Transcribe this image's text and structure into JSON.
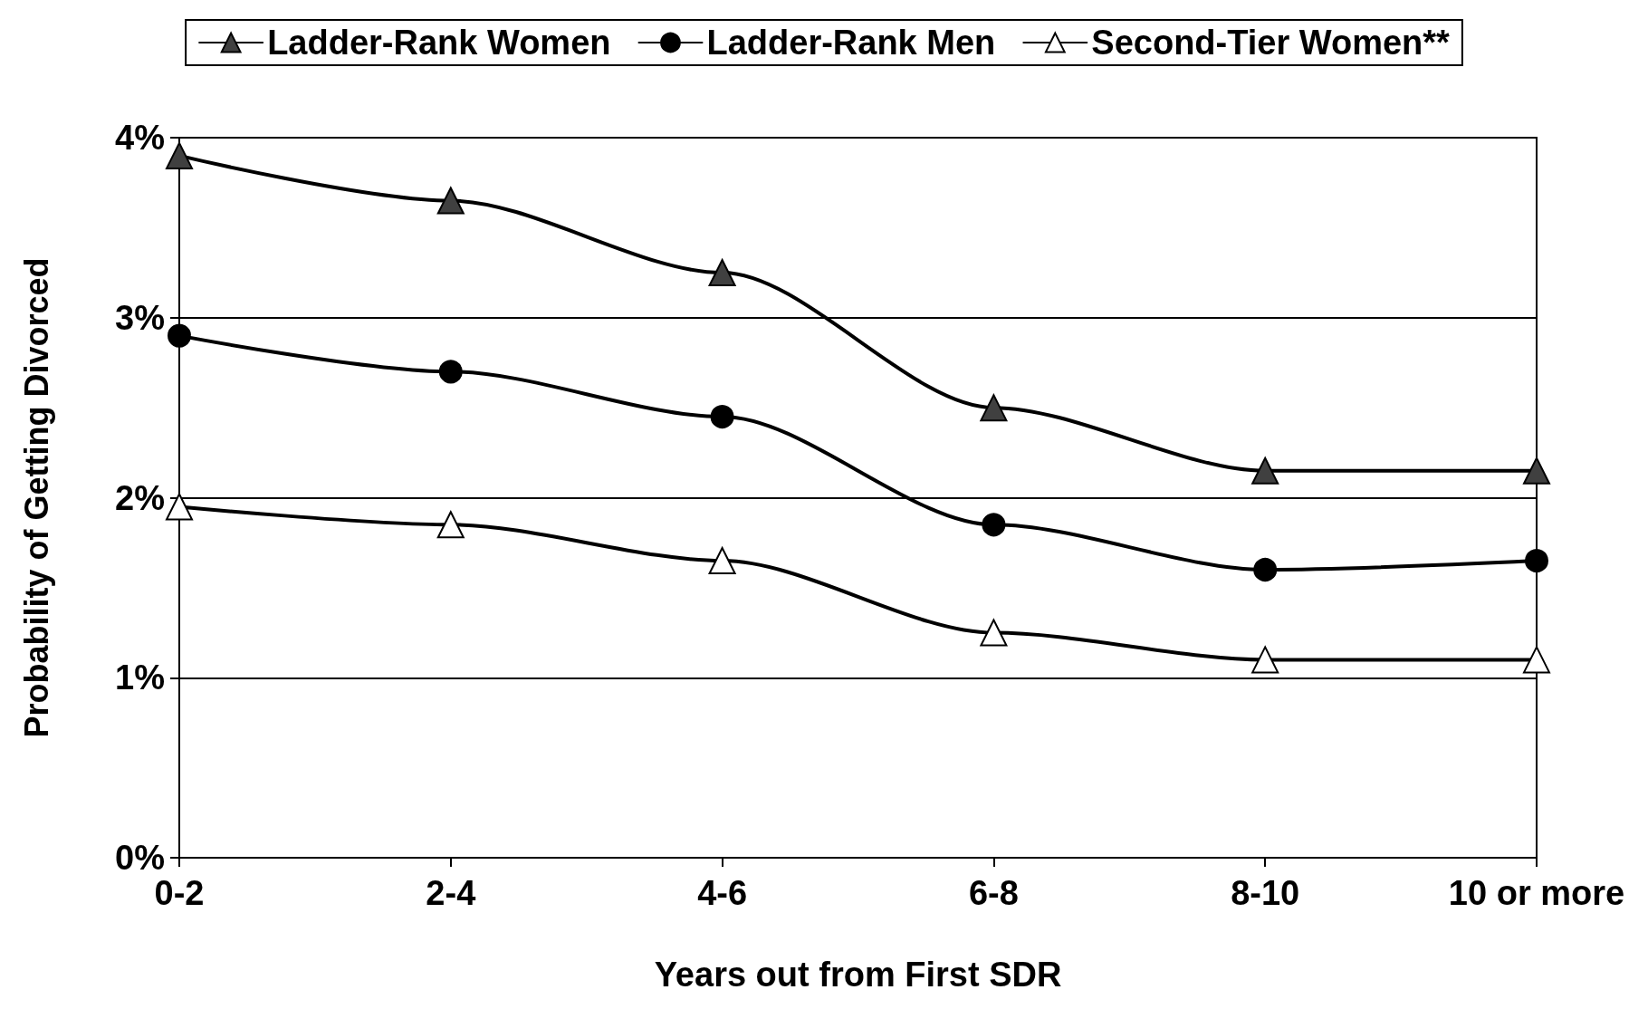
{
  "chart_data": {
    "type": "line",
    "xlabel": "Years out from First SDR",
    "ylabel": "Probability of Getting Divorced",
    "categories": [
      "0-2",
      "2-4",
      "4-6",
      "6-8",
      "8-10",
      "10 or more"
    ],
    "series": [
      {
        "name": "Ladder-Rank Women",
        "color": "#404040",
        "marker": "triangle",
        "values": [
          3.9,
          3.65,
          3.25,
          2.5,
          2.15,
          2.15
        ]
      },
      {
        "name": "Ladder-Rank Men",
        "color": "#000000",
        "marker": "circle",
        "values": [
          2.9,
          2.7,
          2.45,
          1.85,
          1.6,
          1.65
        ]
      },
      {
        "name": "Second-Tier Women**",
        "color": "#ffffff",
        "marker": "triangle",
        "values": [
          1.95,
          1.85,
          1.65,
          1.25,
          1.1,
          1.1
        ]
      }
    ],
    "ylim": [
      0,
      4
    ],
    "yticks": [
      {
        "value": 0,
        "label": "0%"
      },
      {
        "value": 1,
        "label": "1%"
      },
      {
        "value": 2,
        "label": "2%"
      },
      {
        "value": 3,
        "label": "3%"
      },
      {
        "value": 4,
        "label": "4%"
      }
    ],
    "grid": "y",
    "legend": "top",
    "line_style": "solid"
  }
}
